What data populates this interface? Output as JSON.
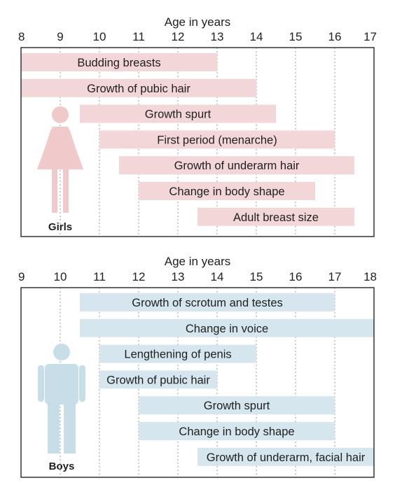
{
  "chart_data": [
    {
      "type": "bar",
      "orientation": "horizontal-range",
      "xlabel": "Age in years",
      "xlim": [
        8,
        17
      ],
      "x_ticks": [
        8,
        9,
        10,
        11,
        12,
        13,
        14,
        15,
        16,
        17
      ],
      "grid": "vertical dotted",
      "figure_label": "Girls",
      "bar_color": "#f3d7d8",
      "figure_color": "#f0c9cb",
      "bars": [
        {
          "label": "Budding breasts",
          "start": 8,
          "end": 13
        },
        {
          "label": "Growth of pubic hair",
          "start": 8,
          "end": 14
        },
        {
          "label": "Growth spurt",
          "start": 9.5,
          "end": 14.5
        },
        {
          "label": "First period (menarche)",
          "start": 10,
          "end": 16
        },
        {
          "label": "Growth of underarm hair",
          "start": 10.5,
          "end": 16.5
        },
        {
          "label": "Change in body shape",
          "start": 11,
          "end": 15.5
        },
        {
          "label": "Adult breast size",
          "start": 12.5,
          "end": 16.5
        }
      ]
    },
    {
      "type": "bar",
      "orientation": "horizontal-range",
      "xlabel": "Age in years",
      "xlim": [
        9,
        18
      ],
      "x_ticks": [
        9,
        10,
        11,
        12,
        13,
        14,
        15,
        16,
        17,
        18
      ],
      "grid": "vertical dotted",
      "figure_label": "Boys",
      "bar_color": "#d6e6ee",
      "figure_color": "#c7dde8",
      "bars": [
        {
          "label": "Growth of scrotum and testes",
          "start": 10.5,
          "end": 17
        },
        {
          "label": "Change in voice",
          "start": 10.5,
          "end": 18
        },
        {
          "label": "Lengthening of penis",
          "start": 11,
          "end": 15
        },
        {
          "label": "Growth of pubic hair",
          "start": 11,
          "end": 14
        },
        {
          "label": "Growth spurt",
          "start": 12,
          "end": 17
        },
        {
          "label": "Change in body shape",
          "start": 12,
          "end": 17
        },
        {
          "label": "Growth of underarm, facial hair",
          "start": 13.5,
          "end": 18
        }
      ]
    }
  ],
  "style": {
    "text_color": "#1f1f1f",
    "frame_color": "#333333",
    "grid_color": "#9a9a9a"
  }
}
